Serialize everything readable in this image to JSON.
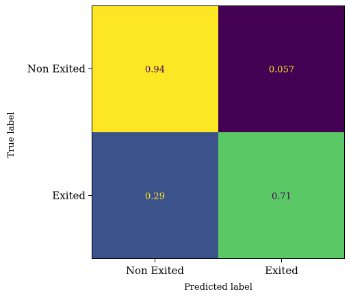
{
  "chart_data": {
    "type": "heatmap",
    "title": "",
    "xlabel": "Predicted label",
    "ylabel": "True label",
    "x_categories": [
      "Non Exited",
      "Exited"
    ],
    "y_categories": [
      "Non Exited",
      "Exited"
    ],
    "values": [
      [
        0.94,
        0.057
      ],
      [
        0.29,
        0.71
      ]
    ],
    "value_labels": [
      [
        "0.94",
        "0.057"
      ],
      [
        "0.29",
        "0.71"
      ]
    ],
    "colormap": "viridis",
    "cell_colors": [
      [
        "#fde725",
        "#440154"
      ],
      [
        "#3b528b",
        "#5ac864"
      ]
    ],
    "text_colors": [
      [
        "#440154",
        "#fde725"
      ],
      [
        "#fde725",
        "#440154"
      ]
    ],
    "grid": false,
    "colorbar": false
  }
}
